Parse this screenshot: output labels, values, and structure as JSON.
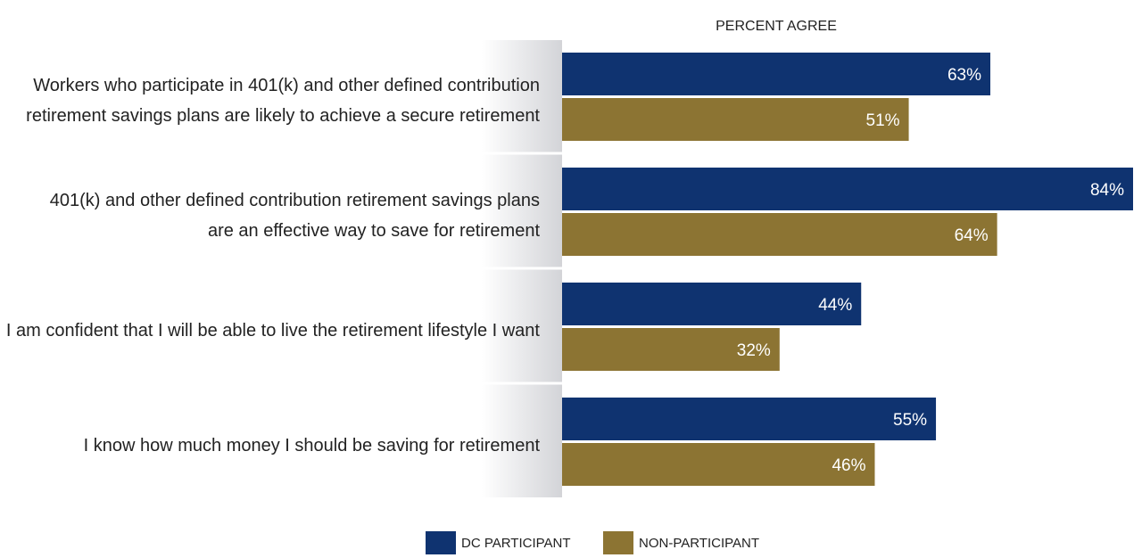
{
  "chart_data": {
    "type": "bar",
    "orientation": "horizontal",
    "title": "PERCENT AGREE",
    "categories": [
      "Workers who participate in 401(k) and other defined contribution\nretirement savings plans are likely to achieve a secure retirement",
      "401(k) and other defined contribution retirement savings plans\nare an effective way to save for retirement",
      "I am confident that I will be able to live the retirement lifestyle I want",
      "I know how much money I should be saving for retirement"
    ],
    "series": [
      {
        "name": "DC PARTICIPANT",
        "values": [
          63,
          84,
          44,
          55
        ],
        "labels": [
          "63%",
          "84%",
          "44%",
          "55%"
        ],
        "color": "#0f3370"
      },
      {
        "name": "NON-PARTICIPANT",
        "values": [
          51,
          64,
          32,
          46
        ],
        "labels": [
          "51%",
          "64%",
          "32%",
          "46%"
        ],
        "color": "#8c7433"
      }
    ],
    "xlim": [
      0,
      84
    ],
    "grid": false,
    "legend": "bottom-center"
  }
}
